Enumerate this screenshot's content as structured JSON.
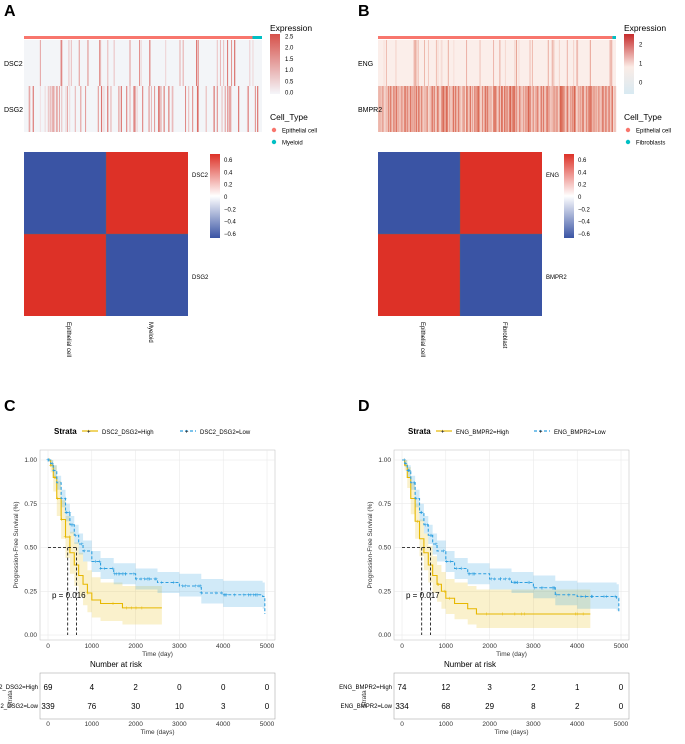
{
  "panels": [
    {
      "id": "A",
      "heatmap": {
        "rows": [
          "DSC2",
          "DSG2"
        ],
        "expression_legend_title": "Expression",
        "expression_ticks": [
          "2.5",
          "2.0",
          "1.5",
          "1.0",
          "0.5",
          "0.0"
        ],
        "expression_range": [
          0,
          2.6
        ],
        "celltype_legend_title": "Cell_Type",
        "celltypes": [
          {
            "name": "Epithelial cell",
            "color": "#f8766d"
          },
          {
            "name": "Myeloid",
            "color": "#00bfc4"
          }
        ],
        "annotation_split": 0.96
      },
      "correlation": {
        "labels": [
          "DSC2",
          "DSG2"
        ],
        "column_labels": [
          "Epithelial cell",
          "Myeloid"
        ],
        "ticks": [
          "0.6",
          "0.4",
          "0.2",
          "0",
          "−0.2",
          "−0.4",
          "−0.6"
        ],
        "matrix_colors": [
          [
            "#3a54a4",
            "#dd3127"
          ],
          [
            "#dd3127",
            "#3a54a4"
          ]
        ]
      }
    },
    {
      "id": "B",
      "heatmap": {
        "rows": [
          "ENG",
          "BMPR2"
        ],
        "expression_legend_title": "Expression",
        "expression_ticks": [
          "2",
          "1",
          "0"
        ],
        "expression_range": [
          -0.9,
          2.5
        ],
        "celltype_legend_title": "Cell_Type",
        "celltypes": [
          {
            "name": "Epithelial cell",
            "color": "#f8766d"
          },
          {
            "name": "Fibroblasts",
            "color": "#00bfc4"
          }
        ],
        "annotation_split": 0.985
      },
      "correlation": {
        "labels": [
          "ENG",
          "BMPR2"
        ],
        "column_labels": [
          "Epithelial cell",
          "Fibroblast"
        ],
        "ticks": [
          "0.6",
          "0.4",
          "0.2",
          "0",
          "−0.2",
          "−0.4",
          "−0.6"
        ],
        "matrix_colors": [
          [
            "#3a54a4",
            "#dd3127"
          ],
          [
            "#dd3127",
            "#3a54a4"
          ]
        ]
      }
    },
    {
      "id": "C",
      "legend_title": "Strata",
      "ylabel": "Progression-Free Survival (%)",
      "xlabel": "Time (day)",
      "pvalue": "p = 0.016",
      "risk_title": "Number at risk",
      "risk_ylabel": "Strata",
      "risk_xlabel": "Time (days)",
      "chart_data": {
        "type": "line",
        "xlim": [
          0,
          5000
        ],
        "ylim": [
          0,
          1
        ],
        "x_ticks": [
          "0",
          "1000",
          "2000",
          "3000",
          "4000",
          "5000"
        ],
        "y_ticks": [
          "0.00",
          "0.25",
          "0.50",
          "0.75",
          "1.00"
        ],
        "median_high": 450,
        "median_low": 650,
        "series": [
          {
            "name": "DSC2_DSG2=High",
            "color": "#e7b800",
            "x": [
              0,
              60,
              120,
              200,
              300,
              400,
              500,
              600,
              700,
              800,
              900,
              1000,
              1200,
              1700,
              2600
            ],
            "y": [
              1.0,
              0.97,
              0.9,
              0.78,
              0.66,
              0.56,
              0.47,
              0.4,
              0.34,
              0.29,
              0.24,
              0.2,
              0.18,
              0.155,
              0.155
            ],
            "ci_upper": [
              1.0,
              1.0,
              0.97,
              0.88,
              0.77,
              0.68,
              0.59,
              0.53,
              0.47,
              0.42,
              0.37,
              0.33,
              0.3,
              0.28,
              0.28
            ],
            "ci_lower": [
              1.0,
              0.93,
              0.82,
              0.68,
              0.55,
              0.44,
              0.35,
              0.28,
              0.22,
              0.17,
              0.13,
              0.1,
              0.08,
              0.06,
              0.06
            ]
          },
          {
            "name": "DSC2_DSG2=Low",
            "color": "#2e9fdf",
            "x": [
              0,
              60,
              120,
              200,
              300,
              400,
              500,
              600,
              700,
              800,
              1000,
              1200,
              1500,
              2000,
              2500,
              3000,
              3500,
              4000,
              4900,
              4950
            ],
            "y": [
              1.0,
              0.98,
              0.94,
              0.87,
              0.78,
              0.7,
              0.63,
              0.57,
              0.52,
              0.48,
              0.42,
              0.38,
              0.35,
              0.32,
              0.3,
              0.28,
              0.24,
              0.23,
              0.22,
              0.12
            ],
            "ci_upper": [
              1.0,
              1.0,
              0.97,
              0.91,
              0.83,
              0.75,
              0.68,
              0.63,
              0.58,
              0.54,
              0.48,
              0.44,
              0.41,
              0.38,
              0.36,
              0.35,
              0.32,
              0.31,
              0.3,
              0.5
            ],
            "ci_lower": [
              1.0,
              0.96,
              0.9,
              0.83,
              0.73,
              0.65,
              0.58,
              0.52,
              0.46,
              0.42,
              0.36,
              0.32,
              0.29,
              0.26,
              0.24,
              0.22,
              0.18,
              0.16,
              0.15,
              0.02
            ]
          }
        ]
      },
      "risk_table": [
        {
          "name": "DSC2_DSG2=High",
          "color": "#e7b800",
          "values": [
            "69",
            "4",
            "2",
            "0",
            "0",
            "0"
          ]
        },
        {
          "name": "DSC2_DSG2=Low",
          "color": "#2e9fdf",
          "values": [
            "339",
            "76",
            "30",
            "10",
            "3",
            "0"
          ]
        }
      ]
    },
    {
      "id": "D",
      "legend_title": "Strata",
      "ylabel": "Progression-Free Survival (%)",
      "xlabel": "Time (day)",
      "pvalue": "p = 0.017",
      "risk_title": "Number at risk",
      "risk_ylabel": "Strata",
      "risk_xlabel": "Time (days)",
      "chart_data": {
        "type": "line",
        "xlim": [
          0,
          5000
        ],
        "ylim": [
          0,
          1
        ],
        "x_ticks": [
          "0",
          "1000",
          "2000",
          "3000",
          "4000",
          "5000"
        ],
        "y_ticks": [
          "0.00",
          "0.25",
          "0.50",
          "0.75",
          "1.00"
        ],
        "median_high": 450,
        "median_low": 650,
        "series": [
          {
            "name": "ENG_BMPR2=High",
            "color": "#e7b800",
            "x": [
              0,
              60,
              120,
              200,
              300,
              400,
              500,
              600,
              700,
              800,
              900,
              1000,
              1200,
              1500,
              1700,
              4300
            ],
            "y": [
              1.0,
              0.97,
              0.9,
              0.78,
              0.65,
              0.55,
              0.47,
              0.4,
              0.34,
              0.29,
              0.25,
              0.21,
              0.18,
              0.15,
              0.12,
              0.12
            ],
            "ci_upper": [
              1.0,
              1.0,
              0.96,
              0.87,
              0.75,
              0.66,
              0.58,
              0.51,
              0.45,
              0.4,
              0.36,
              0.32,
              0.3,
              0.28,
              0.26,
              0.26
            ],
            "ci_lower": [
              1.0,
              0.94,
              0.84,
              0.69,
              0.55,
              0.45,
              0.37,
              0.3,
              0.24,
              0.19,
              0.15,
              0.12,
              0.09,
              0.06,
              0.04,
              0.04
            ]
          },
          {
            "name": "ENG_BMPR2=Low",
            "color": "#2e9fdf",
            "x": [
              0,
              60,
              120,
              200,
              300,
              400,
              500,
              600,
              700,
              800,
              1000,
              1200,
              1500,
              2000,
              2500,
              3000,
              3500,
              4000,
              4900,
              4950
            ],
            "y": [
              1.0,
              0.98,
              0.94,
              0.87,
              0.78,
              0.7,
              0.63,
              0.57,
              0.52,
              0.48,
              0.42,
              0.38,
              0.35,
              0.32,
              0.3,
              0.27,
              0.23,
              0.22,
              0.21,
              0.13
            ],
            "ci_upper": [
              1.0,
              1.0,
              0.97,
              0.91,
              0.83,
              0.75,
              0.68,
              0.63,
              0.58,
              0.54,
              0.48,
              0.44,
              0.41,
              0.38,
              0.36,
              0.34,
              0.31,
              0.3,
              0.29,
              0.5
            ],
            "ci_lower": [
              1.0,
              0.96,
              0.9,
              0.83,
              0.73,
              0.65,
              0.58,
              0.52,
              0.46,
              0.42,
              0.36,
              0.32,
              0.29,
              0.26,
              0.24,
              0.21,
              0.17,
              0.15,
              0.14,
              0.02
            ]
          }
        ]
      },
      "risk_table": [
        {
          "name": "ENG_BMPR2=High",
          "color": "#e7b800",
          "values": [
            "74",
            "12",
            "3",
            "2",
            "1",
            "0"
          ]
        },
        {
          "name": "ENG_BMPR2=Low",
          "color": "#2e9fdf",
          "values": [
            "334",
            "68",
            "29",
            "8",
            "2",
            "0"
          ]
        }
      ]
    }
  ]
}
